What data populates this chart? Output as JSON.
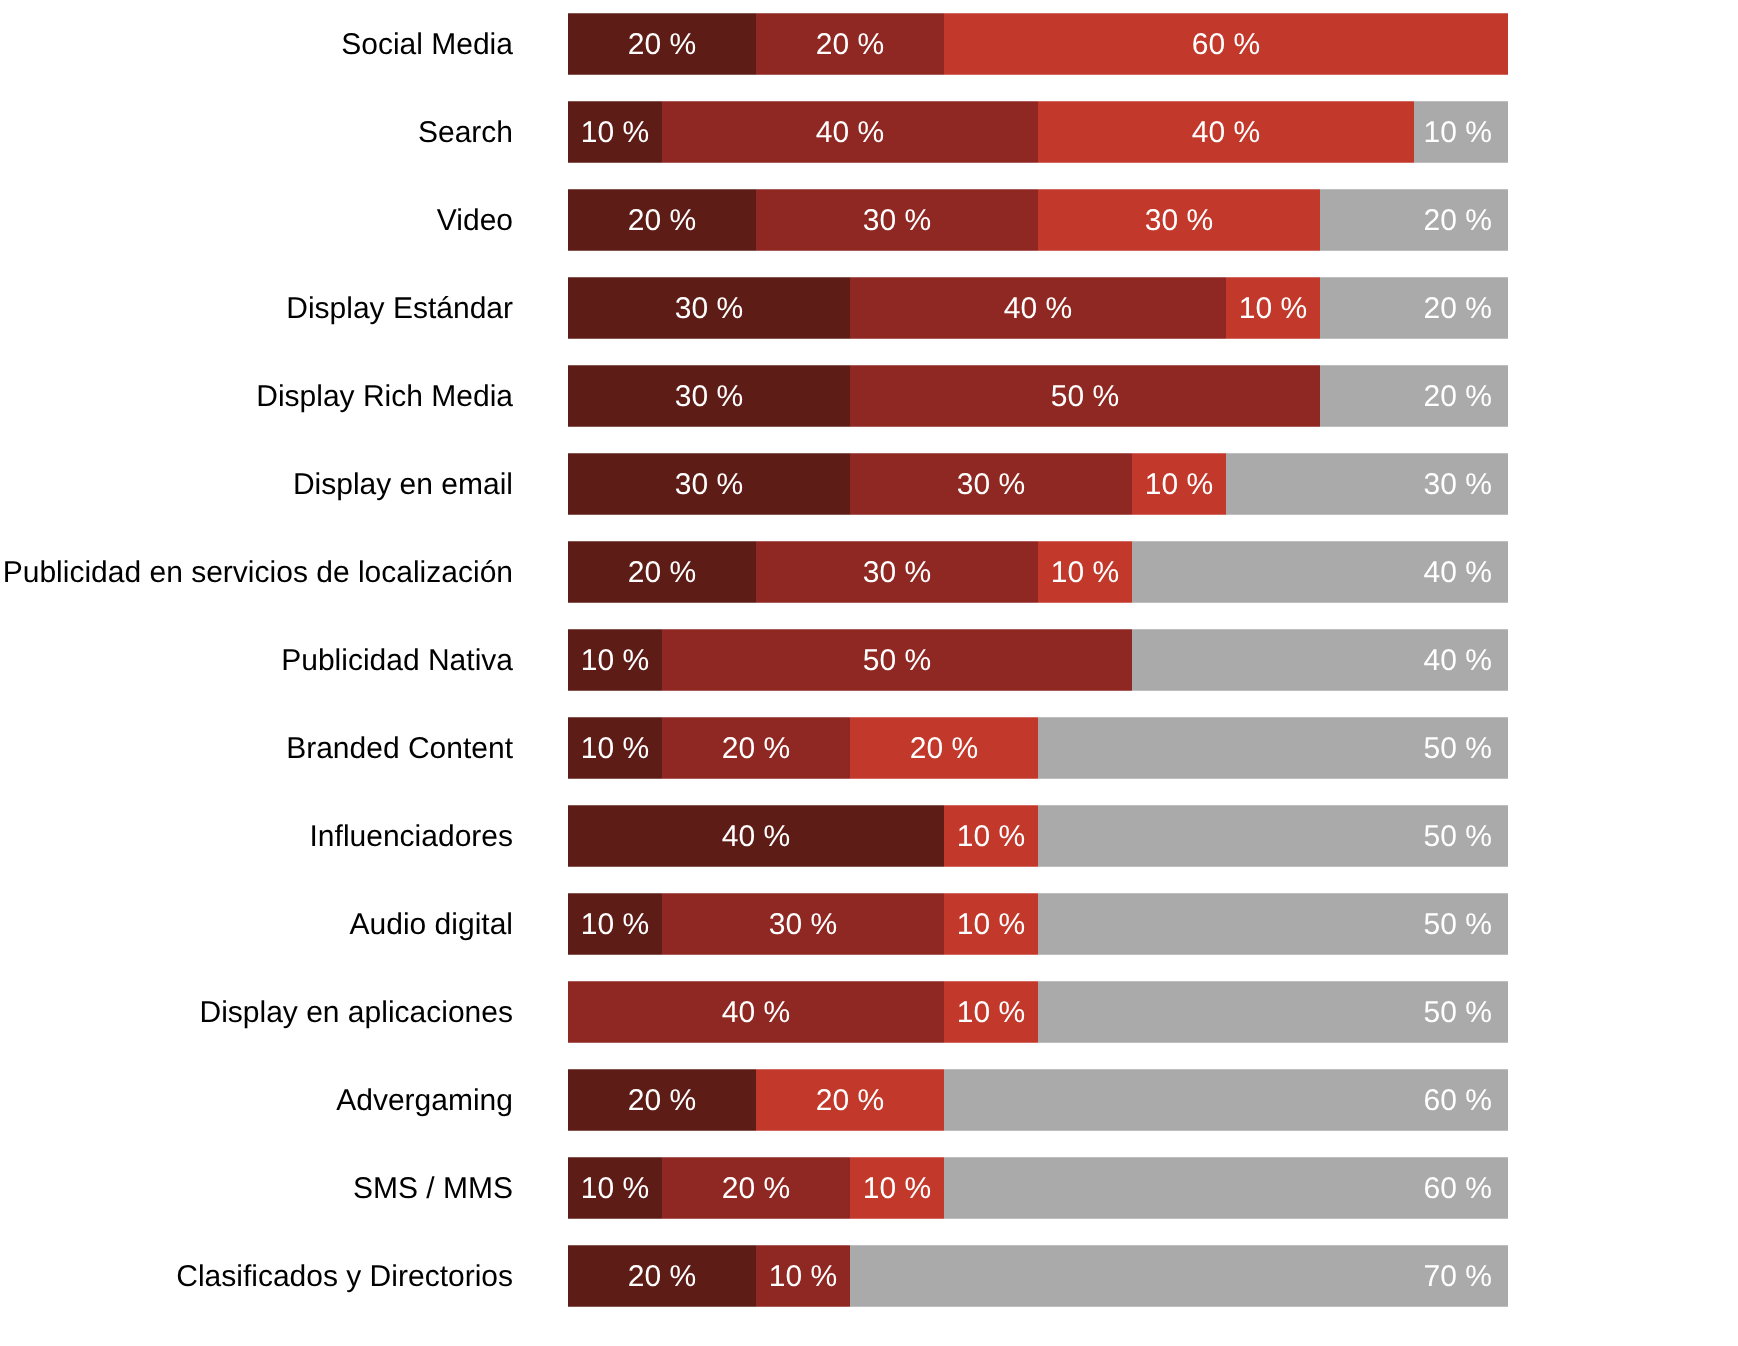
{
  "chart_data": {
    "type": "bar",
    "orientation": "horizontal",
    "stacked": true,
    "xlim": [
      0,
      100
    ],
    "tick_labels": "y",
    "grid": false,
    "categories": [
      "Social Media",
      "Search",
      "Video",
      "Display Estándar",
      "Display Rich Media",
      "Display en email",
      "Publicidad en servicios de localización",
      "Publicidad Nativa",
      "Branded Content",
      "Influenciadores",
      "Audio digital",
      "Display en aplicaciones",
      "Advergaming",
      "SMS / MMS",
      "Clasificados y Directorios"
    ],
    "series": [
      {
        "color": "#5e1c16",
        "values": [
          20,
          10,
          20,
          30,
          30,
          30,
          20,
          10,
          10,
          40,
          10,
          null,
          20,
          10,
          20
        ],
        "value_labels": [
          "20 %",
          "10 %",
          "20 %",
          "30 %",
          "30 %",
          "30 %",
          "20 %",
          "10 %",
          "10 %",
          "40 %",
          "10 %",
          null,
          "20 %",
          "10 %",
          "20 %"
        ]
      },
      {
        "color": "#8f2822",
        "values": [
          20,
          40,
          30,
          40,
          50,
          30,
          30,
          50,
          20,
          null,
          30,
          40,
          null,
          20,
          10
        ],
        "value_labels": [
          "20 %",
          "40 %",
          "30 %",
          "40 %",
          "50 %",
          "30 %",
          "30 %",
          "50 %",
          "20 %",
          null,
          "30 %",
          "40 %",
          null,
          "20 %",
          "10 %"
        ]
      },
      {
        "color": "#c2392c",
        "values": [
          60,
          40,
          30,
          10,
          null,
          10,
          10,
          null,
          20,
          10,
          10,
          10,
          20,
          10,
          null
        ],
        "value_labels": [
          "60 %",
          "40 %",
          "30 %",
          "10 %",
          null,
          "10 %",
          "10 %",
          null,
          "20 %",
          "10 %",
          "10 %",
          "10 %",
          "20 %",
          "10 %",
          null
        ]
      },
      {
        "color": "#aaaaaa",
        "values": [
          null,
          10,
          20,
          20,
          20,
          30,
          40,
          40,
          50,
          50,
          50,
          50,
          60,
          60,
          70
        ],
        "value_labels": [
          null,
          "10 %",
          "20 %",
          "20 %",
          "20 %",
          "30 %",
          "40 %",
          "40 %",
          "50 %",
          "50 %",
          "50 %",
          "50 %",
          "60 %",
          "60 %",
          "70 %"
        ]
      }
    ]
  }
}
